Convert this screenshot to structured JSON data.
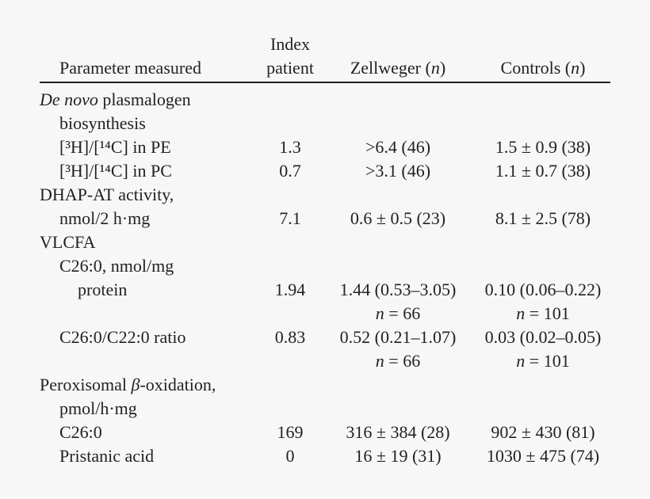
{
  "table": {
    "header": {
      "param": "Parameter measured",
      "index": [
        "Index",
        "patient"
      ],
      "zellweger": [
        {
          "text": "Zellweger ("
        },
        {
          "text": "n",
          "italic": true
        },
        {
          "text": ")"
        }
      ],
      "controls": [
        {
          "text": "Controls ("
        },
        {
          "text": "n",
          "italic": true
        },
        {
          "text": ")"
        }
      ]
    },
    "rows": [
      {
        "param": [
          {
            "text": "De novo",
            "italic": true
          },
          {
            "text": " plasmalogen"
          }
        ]
      },
      {
        "param": "biosynthesis"
      },
      {
        "param": "[³H]/[¹⁴C] in PE",
        "index": "1.3",
        "zellweger": ">6.4 (46)",
        "controls": "1.5 ± 0.9 (38)"
      },
      {
        "param": "[³H]/[¹⁴C] in PC",
        "index": "0.7",
        "zellweger": ">3.1 (46)",
        "controls": "1.1 ± 0.7 (38)"
      },
      {
        "param": "DHAP-AT activity,"
      },
      {
        "param": "nmol/2 h·mg",
        "index": "7.1",
        "zellweger": "0.6 ± 0.5 (23)",
        "controls": "8.1 ± 2.5 (78)"
      },
      {
        "param": "VLCFA"
      },
      {
        "param": "C26:0, nmol/mg"
      },
      {
        "param": "protein",
        "index": "1.94",
        "zellweger": "1.44 (0.53–3.05)",
        "controls": "0.10 (0.06–0.22)"
      },
      {
        "zellweger": [
          {
            "text": "n",
            "italic": true
          },
          {
            "text": " = 66"
          }
        ],
        "controls": [
          {
            "text": "n",
            "italic": true
          },
          {
            "text": " = 101"
          }
        ]
      },
      {
        "param": "C26:0/C22:0 ratio",
        "index": "0.83",
        "zellweger": "0.52 (0.21–1.07)",
        "controls": "0.03 (0.02–0.05)"
      },
      {
        "zellweger": [
          {
            "text": "n",
            "italic": true
          },
          {
            "text": " = 66"
          }
        ],
        "controls": [
          {
            "text": "n",
            "italic": true
          },
          {
            "text": " = 101"
          }
        ]
      },
      {
        "param": [
          {
            "text": "Peroxisomal "
          },
          {
            "text": "β",
            "italic": true
          },
          {
            "text": "-oxidation,"
          }
        ]
      },
      {
        "param": "pmol/h·mg"
      },
      {
        "param": "C26:0",
        "index": "169",
        "zellweger": "316 ± 384 (28)",
        "controls": "902 ± 430 (81)"
      },
      {
        "param": "Pristanic acid",
        "index": "0",
        "zellweger": "16 ± 19 (31)",
        "controls": "1030 ± 475 (74)"
      }
    ]
  }
}
